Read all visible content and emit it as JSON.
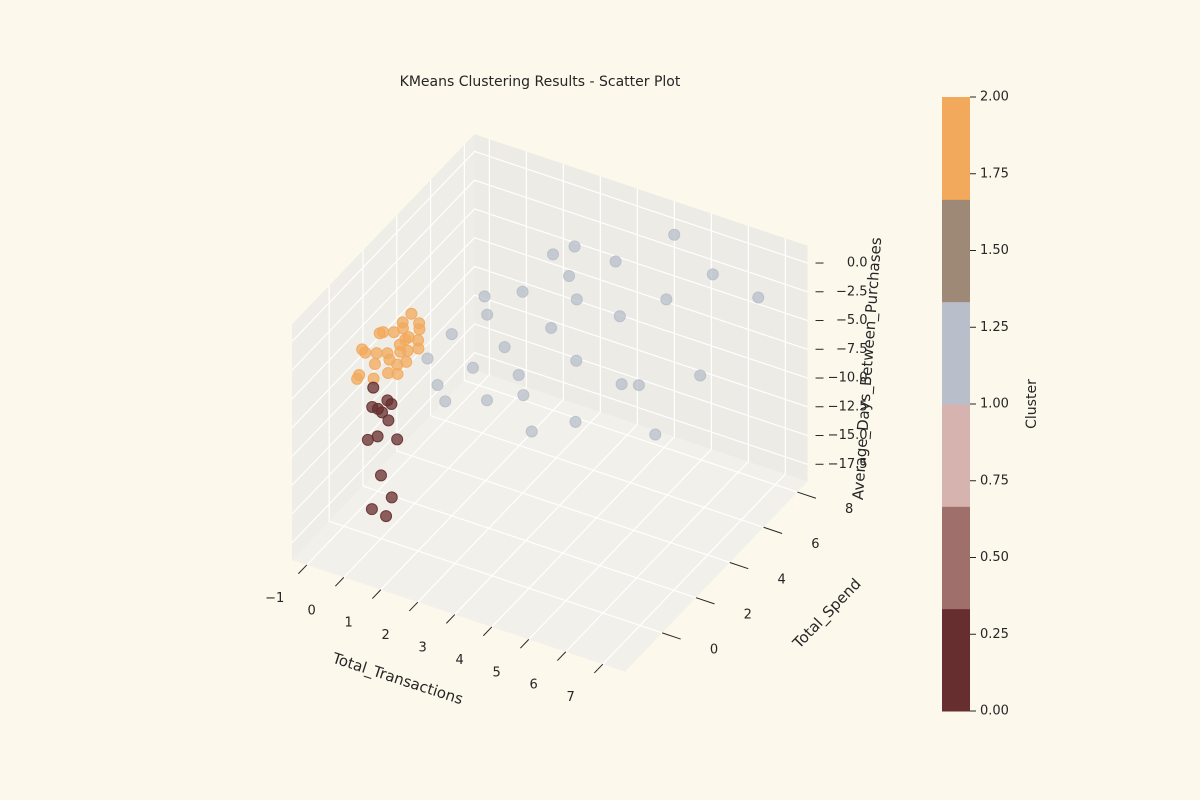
{
  "chart_data": {
    "type": "scatter3d",
    "title": "KMeans Clustering Results - Scatter Plot",
    "x_label": "Total_Transactions",
    "y_label": "Total_Spend",
    "z_label": "Average_Days_Between_Purchases",
    "xlim": [
      -1.4,
      7.6
    ],
    "ylim": [
      -2.2,
      8.6
    ],
    "zlim": [
      -19,
      1.5
    ],
    "xticks": [
      {
        "value": -1,
        "label": "−1"
      },
      0,
      1,
      2,
      3,
      4,
      5,
      6,
      7
    ],
    "yticks": [
      0,
      2,
      4,
      6,
      8
    ],
    "zticks": [
      {
        "value": 0,
        "label": "0.0"
      },
      {
        "value": -2.5,
        "label": "−2.5"
      },
      {
        "value": -5,
        "label": "−5.0"
      },
      {
        "value": -7.5,
        "label": "−7.5"
      },
      {
        "value": -10,
        "label": "−10.0"
      },
      {
        "value": -12.5,
        "label": "−12.5"
      },
      {
        "value": -15,
        "label": "−15.0"
      },
      {
        "value": -17.5,
        "label": "−17.5"
      }
    ],
    "grid": true,
    "x": [
      -0.6,
      -0.4,
      -0.2,
      0,
      0.2,
      0.4,
      -0.5,
      -0.3,
      -0.1,
      0.1,
      0.3,
      0.5,
      -0.7,
      -0.2,
      0.0,
      0.2,
      0.4,
      0.6,
      -0.4,
      0.1,
      0.3,
      -0.6,
      -0.1,
      0.2,
      0.5,
      0.0,
      -0.3,
      0.4,
      0.8,
      1.0,
      1.3,
      1.5,
      1.8,
      2.0,
      2.2,
      2.5,
      2.8,
      3.0,
      3.3,
      3.6,
      4.0,
      4.4,
      4.8,
      5.2,
      5.6,
      6.0,
      6.5,
      7.0,
      1.2,
      1.6,
      2.4,
      3.1,
      3.8,
      4.5,
      5.5,
      2.0,
      2.9,
      6.8,
      -0.3,
      -0.1,
      0.1,
      0.2,
      -0.2,
      0.0,
      0.3,
      -0.4,
      0.1,
      -0.1,
      0.0,
      0.2,
      -0.2,
      0.0
    ],
    "y": [
      0.2,
      0.8,
      1.2,
      0.5,
      1.0,
      1.4,
      -0.2,
      0.4,
      1.5,
      0.9,
      0.3,
      1.1,
      0.6,
      0.0,
      1.3,
      0.7,
      0.1,
      0.9,
      1.0,
      0.2,
      1.6,
      -0.1,
      0.6,
      1.2,
      0.4,
      1.8,
      0.3,
      0.7,
      1.0,
      2.0,
      0.5,
      3.0,
      1.5,
      4.0,
      2.5,
      0.8,
      5.0,
      3.5,
      1.2,
      6.0,
      2.8,
      4.5,
      1.0,
      5.5,
      3.0,
      6.5,
      2.0,
      7.0,
      3.5,
      0.3,
      6.2,
      4.8,
      0.6,
      7.5,
      2.2,
      5.8,
      1.8,
      4.0,
      0.2,
      -0.3,
      0.4,
      0.0,
      0.5,
      -0.2,
      0.3,
      0.1,
      -0.4,
      0.6,
      0.0,
      0.2,
      -0.1,
      0.3
    ],
    "z": [
      -3.5,
      -2.8,
      -3.1,
      -4.2,
      -3.0,
      -2.5,
      -5.0,
      -3.8,
      -2.6,
      -3.4,
      -4.0,
      -2.9,
      -4.5,
      -5.3,
      -2.7,
      -3.6,
      -4.4,
      -3.2,
      -3.0,
      -4.8,
      -2.4,
      -5.6,
      -3.9,
      -3.1,
      -3.7,
      -2.2,
      -4.6,
      -3.3,
      -4.0,
      -3.2,
      -5.0,
      -2.5,
      -4.5,
      -1.5,
      -3.8,
      -5.5,
      -0.8,
      -2.8,
      -4.8,
      -0.2,
      -3.5,
      -1.8,
      -5.2,
      -1.0,
      -4.2,
      0.5,
      -6.0,
      -1.2,
      -2.0,
      -5.8,
      -0.5,
      -2.2,
      -6.5,
      0.8,
      -3.0,
      -1.0,
      -4.4,
      -3.6,
      -6.5,
      -7.2,
      -7.8,
      -8.5,
      -9.0,
      -9.8,
      -10.5,
      -11.0,
      -7.0,
      -8.0,
      -13.5,
      -15.5,
      -16.5,
      -17.5
    ],
    "cluster": [
      2,
      2,
      2,
      2,
      2,
      2,
      2,
      2,
      2,
      2,
      2,
      2,
      2,
      2,
      2,
      2,
      2,
      2,
      2,
      2,
      2,
      2,
      2,
      2,
      2,
      2,
      2,
      2,
      1,
      1,
      1,
      1,
      1,
      1,
      1,
      1,
      1,
      1,
      1,
      1,
      1,
      1,
      1,
      1,
      1,
      1,
      1,
      1,
      1,
      1,
      1,
      1,
      1,
      1,
      1,
      1,
      1,
      1,
      0,
      0,
      0,
      0,
      0,
      0,
      0,
      0,
      0,
      0,
      0,
      0,
      0,
      0
    ],
    "colormap": [
      "#662e2e",
      "#9e6f6b",
      "#d6b3ae",
      "#b8bfca",
      "#9e8876",
      "#f2a95c"
    ],
    "colorbar_label": "Cluster",
    "clim": [
      0,
      2
    ],
    "colorbar_ticks": [
      {
        "value": 0,
        "label": "0.00"
      },
      {
        "value": 0.25,
        "label": "0.25"
      },
      {
        "value": 0.5,
        "label": "0.50"
      },
      {
        "value": 0.75,
        "label": "0.75"
      },
      {
        "value": 1,
        "label": "1.00"
      },
      {
        "value": 1.25,
        "label": "1.25"
      },
      {
        "value": 1.5,
        "label": "1.50"
      },
      {
        "value": 1.75,
        "label": "1.75"
      },
      {
        "value": 2,
        "label": "2.00"
      }
    ]
  }
}
